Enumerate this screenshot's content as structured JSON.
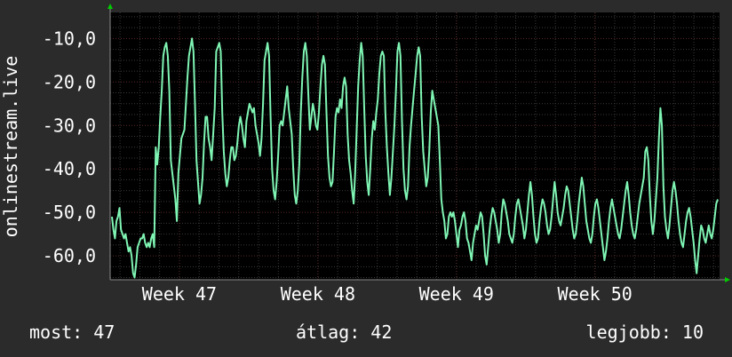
{
  "footer": {
    "current_label": "most:",
    "current_value": "47",
    "average_label": "átlag:",
    "average_value": "42",
    "best_label": "legjobb:",
    "best_value": "10"
  },
  "colors": {
    "background": "#2b2b2b",
    "plot_background": "#000000",
    "line": "#7ff5b4",
    "grid_major": "#5a2a2a",
    "grid_minor": "#3a3a3a",
    "axis_arrow": "#00cc00"
  },
  "chart_data": {
    "type": "line",
    "title": "",
    "xlabel": "",
    "ylabel": "onlinestream.live",
    "ylim": [
      -65.5,
      -4
    ],
    "y_ticks": [
      -10,
      -20,
      -30,
      -40,
      -50,
      -60
    ],
    "y_tick_labels": [
      "-10,0",
      "-20,0",
      "-30,0",
      "-40,0",
      "-50,0",
      "-60,0"
    ],
    "x_ticks": [
      {
        "label": "Week 47",
        "week": 47
      },
      {
        "label": "Week 48",
        "week": 48
      },
      {
        "label": "Week 49",
        "week": 49
      },
      {
        "label": "Week 50",
        "week": 50
      }
    ],
    "xlim_weeks": [
      46.5,
      50.9
    ],
    "grid": true,
    "series": [
      {
        "values": [
          -51,
          -54,
          -56,
          -52,
          -51,
          -49,
          -54,
          -55,
          -56,
          -55,
          -57,
          -59,
          -58,
          -60,
          -64,
          -65,
          -62,
          -58,
          -57,
          -56,
          -56,
          -55,
          -57,
          -58,
          -57,
          -58,
          -56,
          -55,
          -58,
          -35,
          -39,
          -35,
          -28,
          -22,
          -14,
          -12,
          -11,
          -14,
          -22,
          -38,
          -41,
          -44,
          -47,
          -52,
          -41,
          -37,
          -33,
          -32,
          -31,
          -25,
          -19,
          -14,
          -12,
          -10,
          -13,
          -25,
          -38,
          -43,
          -48,
          -46,
          -42,
          -34,
          -28,
          -28,
          -33,
          -35,
          -38,
          -32,
          -26,
          -13,
          -12,
          -11,
          -13,
          -27,
          -36,
          -41,
          -44,
          -42,
          -38,
          -35,
          -35,
          -38,
          -37,
          -34,
          -30,
          -28,
          -30,
          -33,
          -35,
          -29,
          -27,
          -25,
          -26,
          -27,
          -26,
          -30,
          -32,
          -34,
          -37,
          -33,
          -25,
          -15,
          -13,
          -11,
          -14,
          -28,
          -40,
          -45,
          -47,
          -43,
          -37,
          -30,
          -29,
          -30,
          -27,
          -24,
          -21,
          -26,
          -29,
          -32,
          -40,
          -46,
          -48,
          -45,
          -39,
          -27,
          -19,
          -13,
          -11,
          -14,
          -23,
          -31,
          -28,
          -25,
          -27,
          -30,
          -31,
          -27,
          -21,
          -16,
          -14,
          -16,
          -27,
          -37,
          -42,
          -44,
          -43,
          -36,
          -28,
          -26,
          -27,
          -24,
          -26,
          -21,
          -19,
          -21,
          -32,
          -38,
          -41,
          -45,
          -48,
          -41,
          -31,
          -21,
          -15,
          -11,
          -14,
          -26,
          -37,
          -43,
          -46,
          -40,
          -33,
          -29,
          -31,
          -27,
          -24,
          -18,
          -14,
          -13,
          -14,
          -27,
          -35,
          -41,
          -46,
          -42,
          -36,
          -30,
          -22,
          -13,
          -11,
          -14,
          -29,
          -40,
          -45,
          -47,
          -44,
          -35,
          -30,
          -26,
          -22,
          -18,
          -14,
          -12,
          -14,
          -28,
          -36,
          -40,
          -44,
          -42,
          -36,
          -27,
          -22,
          -24,
          -26,
          -28,
          -30,
          -38,
          -47,
          -50,
          -52,
          -56,
          -55,
          -51,
          -50,
          -51,
          -50,
          -52,
          -55,
          -58,
          -54,
          -53,
          -51,
          -50,
          -52,
          -56,
          -57,
          -59,
          -61,
          -57,
          -55,
          -53,
          -54,
          -52,
          -50,
          -51,
          -55,
          -60,
          -62,
          -58,
          -54,
          -51,
          -49,
          -50,
          -52,
          -54,
          -57,
          -55,
          -50,
          -47,
          -48,
          -50,
          -52,
          -55,
          -56,
          -57,
          -55,
          -51,
          -48,
          -47,
          -49,
          -51,
          -53,
          -56,
          -54,
          -50,
          -46,
          -43,
          -46,
          -51,
          -55,
          -57,
          -56,
          -52,
          -49,
          -47,
          -48,
          -50,
          -53,
          -55,
          -54,
          -51,
          -47,
          -43,
          -46,
          -50,
          -52,
          -53,
          -51,
          -49,
          -46,
          -44,
          -45,
          -48,
          -51,
          -54,
          -56,
          -55,
          -52,
          -48,
          -45,
          -42,
          -44,
          -48,
          -52,
          -54,
          -56,
          -57,
          -55,
          -51,
          -48,
          -47,
          -49,
          -52,
          -55,
          -58,
          -61,
          -59,
          -56,
          -52,
          -49,
          -47,
          -49,
          -51,
          -53,
          -55,
          -56,
          -54,
          -51,
          -48,
          -45,
          -43,
          -46,
          -50,
          -53,
          -55,
          -56,
          -54,
          -51,
          -48,
          -46,
          -44,
          -42,
          -36,
          -35,
          -38,
          -46,
          -52,
          -55,
          -52,
          -47,
          -42,
          -33,
          -26,
          -30,
          -44,
          -51,
          -54,
          -56,
          -53,
          -49,
          -45,
          -43,
          -45,
          -48,
          -52,
          -55,
          -57,
          -58,
          -55,
          -52,
          -50,
          -49,
          -51,
          -54,
          -57,
          -61,
          -64,
          -60,
          -56,
          -53,
          -54,
          -56,
          -57,
          -55,
          -53,
          -55,
          -56,
          -54,
          -51,
          -48,
          -47
        ]
      }
    ]
  }
}
